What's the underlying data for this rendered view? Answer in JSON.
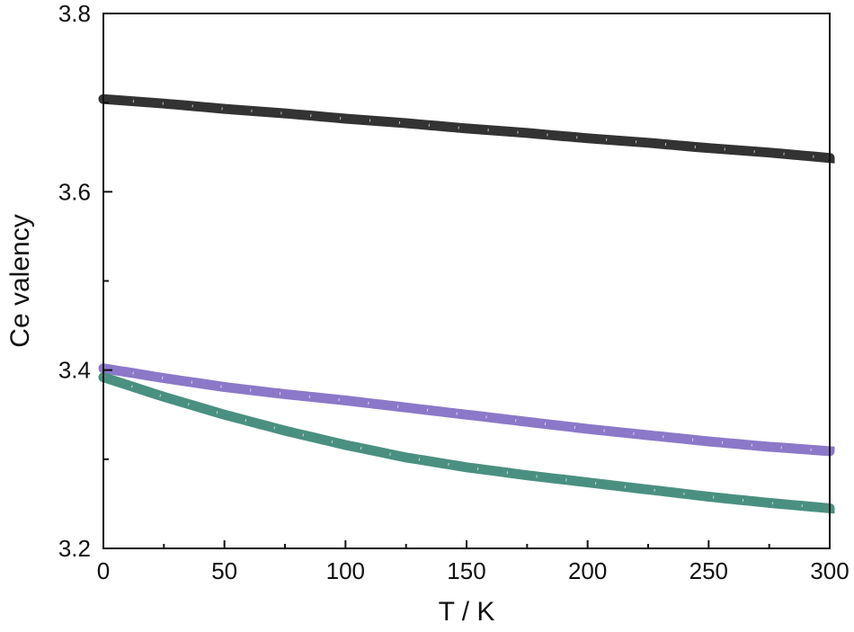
{
  "chart_data": {
    "type": "line",
    "title": "",
    "xlabel": "T / K",
    "ylabel": "Ce valency",
    "xlim": [
      0,
      300
    ],
    "ylim": [
      3.2,
      3.8
    ],
    "xticks": [
      0,
      50,
      100,
      150,
      200,
      250,
      300
    ],
    "yticks": [
      3.2,
      3.4,
      3.6,
      3.8
    ],
    "grid": false,
    "legend": null,
    "x": [
      0,
      25,
      50,
      75,
      100,
      125,
      150,
      175,
      200,
      225,
      250,
      275,
      300
    ],
    "series": [
      {
        "name": "black",
        "color": "#333333",
        "values": [
          3.704,
          3.699,
          3.693,
          3.688,
          3.682,
          3.677,
          3.671,
          3.666,
          3.66,
          3.655,
          3.649,
          3.644,
          3.638
        ]
      },
      {
        "name": "purple",
        "color": "#8b78c8",
        "values": [
          3.402,
          3.391,
          3.381,
          3.373,
          3.366,
          3.358,
          3.35,
          3.342,
          3.334,
          3.327,
          3.32,
          3.314,
          3.309
        ]
      },
      {
        "name": "green",
        "color": "#4a9080",
        "values": [
          3.392,
          3.37,
          3.35,
          3.332,
          3.316,
          3.302,
          3.291,
          3.282,
          3.274,
          3.266,
          3.258,
          3.251,
          3.245
        ]
      }
    ]
  }
}
